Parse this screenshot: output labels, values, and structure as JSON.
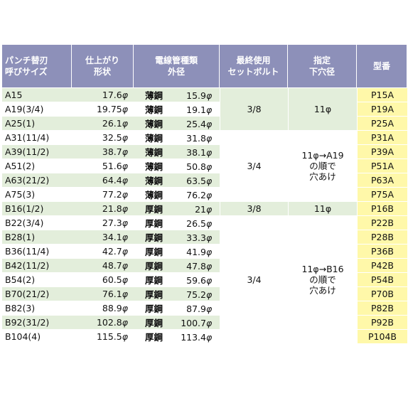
{
  "headers": {
    "punch": [
      "パンチ替刃",
      "呼びサイズ"
    ],
    "finish": [
      "仕上がり",
      "形状"
    ],
    "conduit": [
      "電線管種類",
      "外径"
    ],
    "bolt": [
      "最終使用",
      "セットボルト"
    ],
    "pilot": [
      "指定",
      "下穴径"
    ],
    "model": "型番"
  },
  "phi": "φ",
  "rows": [
    {
      "size": "A15",
      "finish": "17.6",
      "mat": "薄鋼",
      "od": "15.9",
      "model": "P15A"
    },
    {
      "size": "A19(3/4)",
      "finish": "19.75",
      "mat": "薄鋼",
      "od": "19.1",
      "model": "P19A"
    },
    {
      "size": "A25(1)",
      "finish": "26.1",
      "mat": "薄鋼",
      "od": "25.4",
      "model": "P25A"
    },
    {
      "size": "A31(11/4)",
      "finish": "32.5",
      "mat": "薄鋼",
      "od": "31.8",
      "model": "P31A"
    },
    {
      "size": "A39(11/2)",
      "finish": "38.7",
      "mat": "薄鋼",
      "od": "38.1",
      "model": "P39A"
    },
    {
      "size": "A51(2)",
      "finish": "51.6",
      "mat": "薄鋼",
      "od": "50.8",
      "model": "P51A"
    },
    {
      "size": "A63(21/2)",
      "finish": "64.4",
      "mat": "薄鋼",
      "od": "63.5",
      "model": "P63A"
    },
    {
      "size": "A75(3)",
      "finish": "77.2",
      "mat": "薄鋼",
      "od": "76.2",
      "model": "P75A"
    },
    {
      "size": "B16(1/2)",
      "finish": "21.8",
      "mat": "厚鋼",
      "od": "21",
      "model": "P16B"
    },
    {
      "size": "B22(3/4)",
      "finish": "27.3",
      "mat": "厚鋼",
      "od": "26.5",
      "model": "P22B"
    },
    {
      "size": "B28(1)",
      "finish": "34.1",
      "mat": "厚鋼",
      "od": "33.3",
      "model": "P28B"
    },
    {
      "size": "B36(11/4)",
      "finish": "42.7",
      "mat": "厚鋼",
      "od": "41.9",
      "model": "P36B"
    },
    {
      "size": "B42(11/2)",
      "finish": "48.7",
      "mat": "厚鋼",
      "od": "47.8",
      "model": "P42B"
    },
    {
      "size": "B54(2)",
      "finish": "60.5",
      "mat": "厚鋼",
      "od": "59.6",
      "model": "P54B"
    },
    {
      "size": "B70(21/2)",
      "finish": "76.1",
      "mat": "厚鋼",
      "od": "75.2",
      "model": "P70B"
    },
    {
      "size": "B82(3)",
      "finish": "88.9",
      "mat": "厚鋼",
      "od": "87.9",
      "model": "P82B"
    },
    {
      "size": "B92(31/2)",
      "finish": "102.8",
      "mat": "厚鋼",
      "od": "100.7",
      "model": "P92B"
    },
    {
      "size": "B104(4)",
      "finish": "115.5",
      "mat": "厚鋼",
      "od": "113.4",
      "model": "P104B"
    }
  ],
  "bolt_groups": [
    {
      "label": "3/8",
      "span": 3
    },
    {
      "label": "3/4",
      "span": 5
    },
    {
      "label": "3/8",
      "span": 1
    },
    {
      "label": "3/4",
      "span": 9
    }
  ],
  "pilot_groups": [
    {
      "lines": [
        "11φ"
      ],
      "span": 3
    },
    {
      "lines": [
        "11φ→A19",
        "の順で",
        "穴あけ"
      ],
      "span": 5
    },
    {
      "lines": [
        "11φ"
      ],
      "span": 1
    },
    {
      "lines": [
        "11φ→B16",
        "の順で",
        "穴あけ"
      ],
      "span": 9
    }
  ],
  "colors": {
    "header": "#8d90b9",
    "stripe": "#e3eedb",
    "model": "#fff8a9"
  }
}
